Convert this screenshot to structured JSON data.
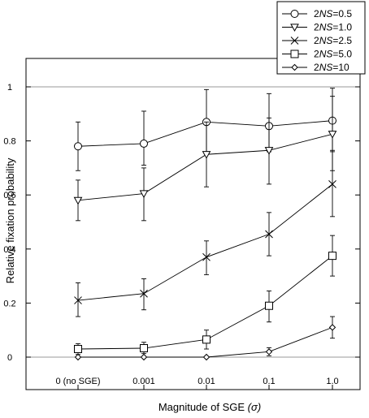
{
  "chart_data": {
    "type": "line",
    "categories": [
      "0 (no SGE)",
      "0.001",
      "0.01",
      "0.1",
      "1.0"
    ],
    "xlabel": "Magnitude of SGE",
    "xlabel_symbol": "(σ)",
    "ylabel": "Relative fixation probability",
    "ylim": [
      0,
      1
    ],
    "yticks": [
      "0",
      "0.2",
      "0.4",
      "0.6",
      "0.8",
      "1"
    ],
    "ytick_values": [
      0,
      0.2,
      0.4,
      0.6,
      0.8,
      1
    ],
    "grid": false,
    "legend_position": "top-right, outside plot",
    "series": [
      {
        "label_italic": "NS",
        "label_pre": "2",
        "label_post": "=0.5",
        "marker": "circle",
        "values": [
          0.78,
          0.79,
          0.87,
          0.855,
          0.875
        ],
        "err_lo": [
          0.69,
          0.71,
          0.76,
          0.76,
          0.76
        ],
        "err_hi": [
          0.87,
          0.91,
          0.99,
          0.975,
          0.995
        ]
      },
      {
        "label_italic": "NS",
        "label_pre": "2",
        "label_post": "=1.0",
        "marker": "triangle-down",
        "values": [
          0.58,
          0.605,
          0.75,
          0.765,
          0.825
        ],
        "err_lo": [
          0.505,
          0.505,
          0.63,
          0.64,
          0.69
        ],
        "err_hi": [
          0.655,
          0.7,
          0.87,
          0.885,
          0.965
        ]
      },
      {
        "label_italic": "NS",
        "label_pre": "2",
        "label_post": "=2.5",
        "marker": "x",
        "values": [
          0.21,
          0.235,
          0.37,
          0.455,
          0.64
        ],
        "err_lo": [
          0.15,
          0.175,
          0.305,
          0.375,
          0.52
        ],
        "err_hi": [
          0.275,
          0.29,
          0.43,
          0.535,
          0.765
        ]
      },
      {
        "label_italic": "NS",
        "label_pre": "2",
        "label_post": "=5.0",
        "marker": "square",
        "values": [
          0.03,
          0.033,
          0.065,
          0.19,
          0.375
        ],
        "err_lo": [
          0.01,
          0.013,
          0.03,
          0.13,
          0.3
        ],
        "err_hi": [
          0.05,
          0.055,
          0.1,
          0.245,
          0.45
        ]
      },
      {
        "label_italic": "NS",
        "label_pre": "2",
        "label_post": "=10",
        "marker": "diamond",
        "values": [
          0.0,
          0.0,
          0.0,
          0.02,
          0.11
        ],
        "err_lo": [
          0.0,
          0.0,
          0.0,
          0.005,
          0.07
        ],
        "err_hi": [
          0.0,
          0.0,
          0.0,
          0.035,
          0.15
        ]
      }
    ]
  }
}
